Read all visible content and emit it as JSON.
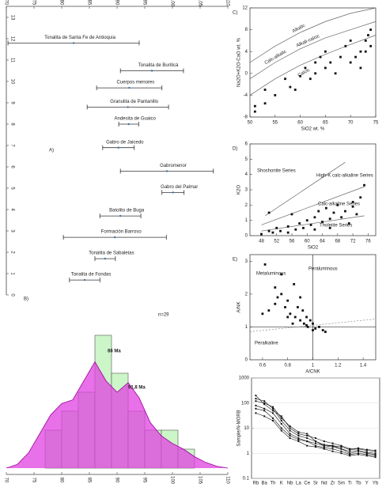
{
  "chart_data": [
    {
      "type": "range",
      "panel": "A)",
      "xlim": [
        70,
        110
      ],
      "xticks": [
        70,
        75,
        80,
        85,
        90,
        95,
        100,
        105,
        110
      ],
      "ylim": [
        0,
        13
      ],
      "yticks": [
        0,
        1,
        2,
        3,
        4,
        5,
        6,
        7,
        8,
        9,
        10,
        11,
        12,
        13
      ],
      "color": "#333333",
      "items": [
        {
          "name": "Tonalita de Santa Fe de Antioquia",
          "min": 70.3,
          "max": 94
        },
        {
          "name": "Tonalita de Buriticá",
          "min": 90.6,
          "max": 102
        },
        {
          "name": "Cuerpos menores",
          "min": 86.3,
          "max": 98.1
        },
        {
          "name": "Granulita de Pantanillo",
          "min": 84.6,
          "max": 99.3
        },
        {
          "name": "Andesita de Guaico",
          "min": 90.3,
          "max": 93.9
        },
        {
          "name": "Gabro de Jaicedo",
          "min": 87.4,
          "max": 93.1
        },
        {
          "name": "Gabromenor",
          "min": 90.6,
          "max": 107.4
        },
        {
          "name": "Gabro del Palmar",
          "min": 98.1,
          "max": 102.1
        },
        {
          "name": "Batolito de Buga",
          "min": 86.9,
          "max": 94.3
        },
        {
          "name": "Formación Barroso",
          "min": 80.3,
          "max": 98.9
        },
        {
          "name": "Tonalita de Sabaletas",
          "min": 86,
          "max": 89.7
        },
        {
          "name": "Tonalita de Fondas",
          "min": 81.4,
          "max": 86.9
        }
      ]
    },
    {
      "type": "histogram",
      "panel": "B)",
      "xlim": [
        70,
        110
      ],
      "xticks": [
        70,
        75,
        80,
        85,
        90,
        95,
        100,
        105,
        110
      ],
      "ylim": [
        0,
        8
      ],
      "bins": [
        77,
        80,
        83,
        86,
        89,
        92,
        95,
        98,
        101,
        104,
        107
      ],
      "counts": [
        2,
        3,
        4,
        7,
        5,
        3,
        2,
        2,
        1,
        0
      ],
      "color": "#ccf5c8",
      "kde_color": "#e040e0",
      "kde": {
        "x": [
          70,
          72,
          74,
          76,
          78,
          80,
          82,
          84,
          86,
          88,
          90,
          92,
          94,
          96,
          98,
          100,
          102,
          104,
          106,
          108,
          110
        ],
        "values": [
          0,
          0.2,
          0.8,
          1.8,
          2.8,
          3.4,
          3.6,
          4.6,
          5.6,
          4.6,
          4.0,
          4.5,
          3.7,
          2.4,
          1.7,
          1.3,
          1.0,
          0.6,
          0.3,
          0.1,
          0
        ]
      },
      "peak_labels": [
        "86 Ma",
        "91,8 Ma"
      ],
      "n_label": "n=29"
    },
    {
      "type": "scatter",
      "panel": "C)",
      "xlabel": "SiO2 wt. %",
      "ylabel": "Na2O+K2O-CaO wt. %",
      "xlim": [
        50,
        75
      ],
      "xticks": [
        50,
        55,
        60,
        65,
        70,
        75
      ],
      "ylim": [
        -8,
        12
      ],
      "yticks": [
        -8,
        -4,
        0,
        4,
        8,
        12
      ],
      "color": "#111111",
      "x": [
        51,
        51,
        53,
        53,
        55,
        57,
        58,
        59,
        60,
        61,
        62,
        63,
        63,
        64,
        65,
        65,
        66,
        67,
        68,
        69,
        70,
        70,
        71,
        72,
        72,
        73,
        73,
        74,
        74,
        73.5
      ],
      "y": [
        -7,
        -6,
        -5.5,
        -3,
        -4,
        -1,
        -2.5,
        -3,
        -0.5,
        1,
        -1,
        0,
        2,
        3,
        4,
        1,
        2,
        0,
        3,
        5,
        2,
        6,
        3,
        4,
        1,
        6,
        4,
        5,
        8,
        7
      ],
      "boundaries": [
        {
          "x": [
            50,
            55,
            60,
            65,
            70,
            75
          ],
          "y": [
            2,
            5,
            7.5,
            9.5,
            11,
            12
          ]
        },
        {
          "x": [
            50,
            55,
            60,
            65,
            70,
            75
          ],
          "y": [
            -1,
            2,
            4.5,
            6.5,
            8,
            9.5
          ]
        },
        {
          "x": [
            50,
            55,
            60,
            65,
            70,
            75
          ],
          "y": [
            -4,
            -1,
            1.5,
            3.5,
            5.3,
            7
          ]
        }
      ],
      "field_labels": [
        "Alkalic",
        "Alkali-calcic",
        "Calc-alkalic",
        "Calcic"
      ]
    },
    {
      "type": "scatter",
      "panel": "D)",
      "xlabel": "SiO2",
      "ylabel": "K2O",
      "xlim": [
        45,
        78
      ],
      "xticks": [
        48,
        52,
        56,
        60,
        64,
        68,
        72,
        76
      ],
      "ylim": [
        0,
        6
      ],
      "yticks": [
        0,
        1,
        2,
        3,
        4,
        5,
        6
      ],
      "color": "#111111",
      "x": [
        48,
        50,
        51,
        52,
        53,
        55,
        55,
        56,
        57,
        58,
        59,
        60,
        61,
        62,
        62,
        63,
        64,
        65,
        66,
        66,
        67,
        68,
        69,
        70,
        71,
        72,
        72,
        73,
        74,
        75,
        50
      ],
      "y": [
        0.1,
        0.3,
        0.2,
        0.5,
        0.3,
        0.6,
        0.2,
        1.4,
        0.4,
        0.8,
        0.5,
        1.0,
        0.7,
        1.2,
        0.4,
        1.6,
        0.9,
        1.8,
        1.1,
        0.5,
        1.5,
        2.0,
        1.2,
        1.6,
        0.8,
        1.9,
        2.2,
        1.4,
        2.5,
        3.3,
        1.5
      ],
      "boundaries": [
        {
          "x": [
            49,
            70
          ],
          "y": [
            1.3,
            4.8
          ]
        },
        {
          "x": [
            48,
            75
          ],
          "y": [
            0.7,
            3.2
          ]
        },
        {
          "x": [
            48,
            75
          ],
          "y": [
            0.3,
            1.3
          ]
        }
      ],
      "field_labels": [
        "Shoshonite Series",
        "High-K calc-alkaline Series",
        "Calc-alkaline Series",
        "Tholeiite Series"
      ]
    },
    {
      "type": "scatter",
      "panel": "E)",
      "xlabel": "A/CNK",
      "ylabel": "A/NK",
      "xlim": [
        0.5,
        1.5
      ],
      "xticks": [
        0.6,
        0.8,
        1,
        1.2,
        1.4
      ],
      "ylim": [
        0,
        3.2
      ],
      "yticks": [
        0,
        1,
        2,
        3
      ],
      "color": "#111111",
      "x": [
        0.62,
        0.65,
        0.7,
        0.72,
        0.75,
        0.78,
        0.8,
        0.82,
        0.85,
        0.86,
        0.88,
        0.9,
        0.92,
        0.93,
        0.95,
        0.96,
        0.98,
        1.0,
        1.02,
        1.05,
        1.08,
        0.7,
        0.75,
        0.8,
        0.84,
        0.9,
        0.95,
        1.0,
        1.1,
        0.6
      ],
      "y": [
        2.9,
        1.5,
        2.2,
        1.9,
        2.6,
        1.6,
        1.8,
        1.4,
        2.3,
        1.3,
        1.6,
        1.2,
        1.5,
        1.1,
        1.3,
        1.0,
        1.2,
        1.1,
        0.95,
        1.0,
        0.9,
        1.7,
        2.0,
        1.3,
        1.1,
        1.9,
        1.05,
        0.9,
        0.85,
        1.4
      ],
      "x_divider": 1,
      "y_divider": 1,
      "field_labels": [
        "Metaluminous",
        "Peraluminous",
        "Peralkaline"
      ]
    },
    {
      "type": "line",
      "ylabel": "Sample/N-MORB",
      "ylog": true,
      "ylim": [
        0.1,
        1000
      ],
      "yticks": [
        0.1,
        1,
        10,
        100,
        1000
      ],
      "categories": [
        "Rb",
        "Ba",
        "Th",
        "K",
        "Nb",
        "La",
        "Ce",
        "Sr",
        "Nd",
        "Zr",
        "Sm",
        "Ti",
        "Tb",
        "Y",
        "Yb"
      ],
      "series": [
        {
          "color": "#111111",
          "values": [
            150,
            120,
            60,
            20,
            8,
            5,
            4,
            3,
            2,
            2,
            1.5,
            1.2,
            1.3,
            1.1,
            1
          ]
        },
        {
          "color": "#111111",
          "values": [
            80,
            60,
            40,
            15,
            6,
            4,
            3,
            2.5,
            2,
            1.8,
            1.5,
            1,
            1.2,
            1,
            0.9
          ]
        },
        {
          "color": "#111111",
          "values": [
            200,
            90,
            50,
            30,
            10,
            6,
            5,
            4,
            3,
            2.5,
            2,
            1.5,
            1.6,
            1.4,
            1.3
          ]
        },
        {
          "color": "#111111",
          "values": [
            40,
            30,
            20,
            8,
            4,
            3,
            2,
            1.8,
            1.5,
            1.2,
            1,
            0.8,
            0.9,
            0.8,
            0.7
          ]
        },
        {
          "color": "#111111",
          "values": [
            120,
            100,
            70,
            25,
            12,
            7,
            6,
            3,
            2.2,
            2,
            1.8,
            1.4,
            1.5,
            1.3,
            1.2
          ]
        },
        {
          "color": "#111111",
          "values": [
            60,
            50,
            25,
            10,
            5,
            3.5,
            3,
            2,
            1.7,
            1.5,
            1.2,
            0.9,
            1,
            0.9,
            0.8
          ]
        }
      ]
    }
  ]
}
